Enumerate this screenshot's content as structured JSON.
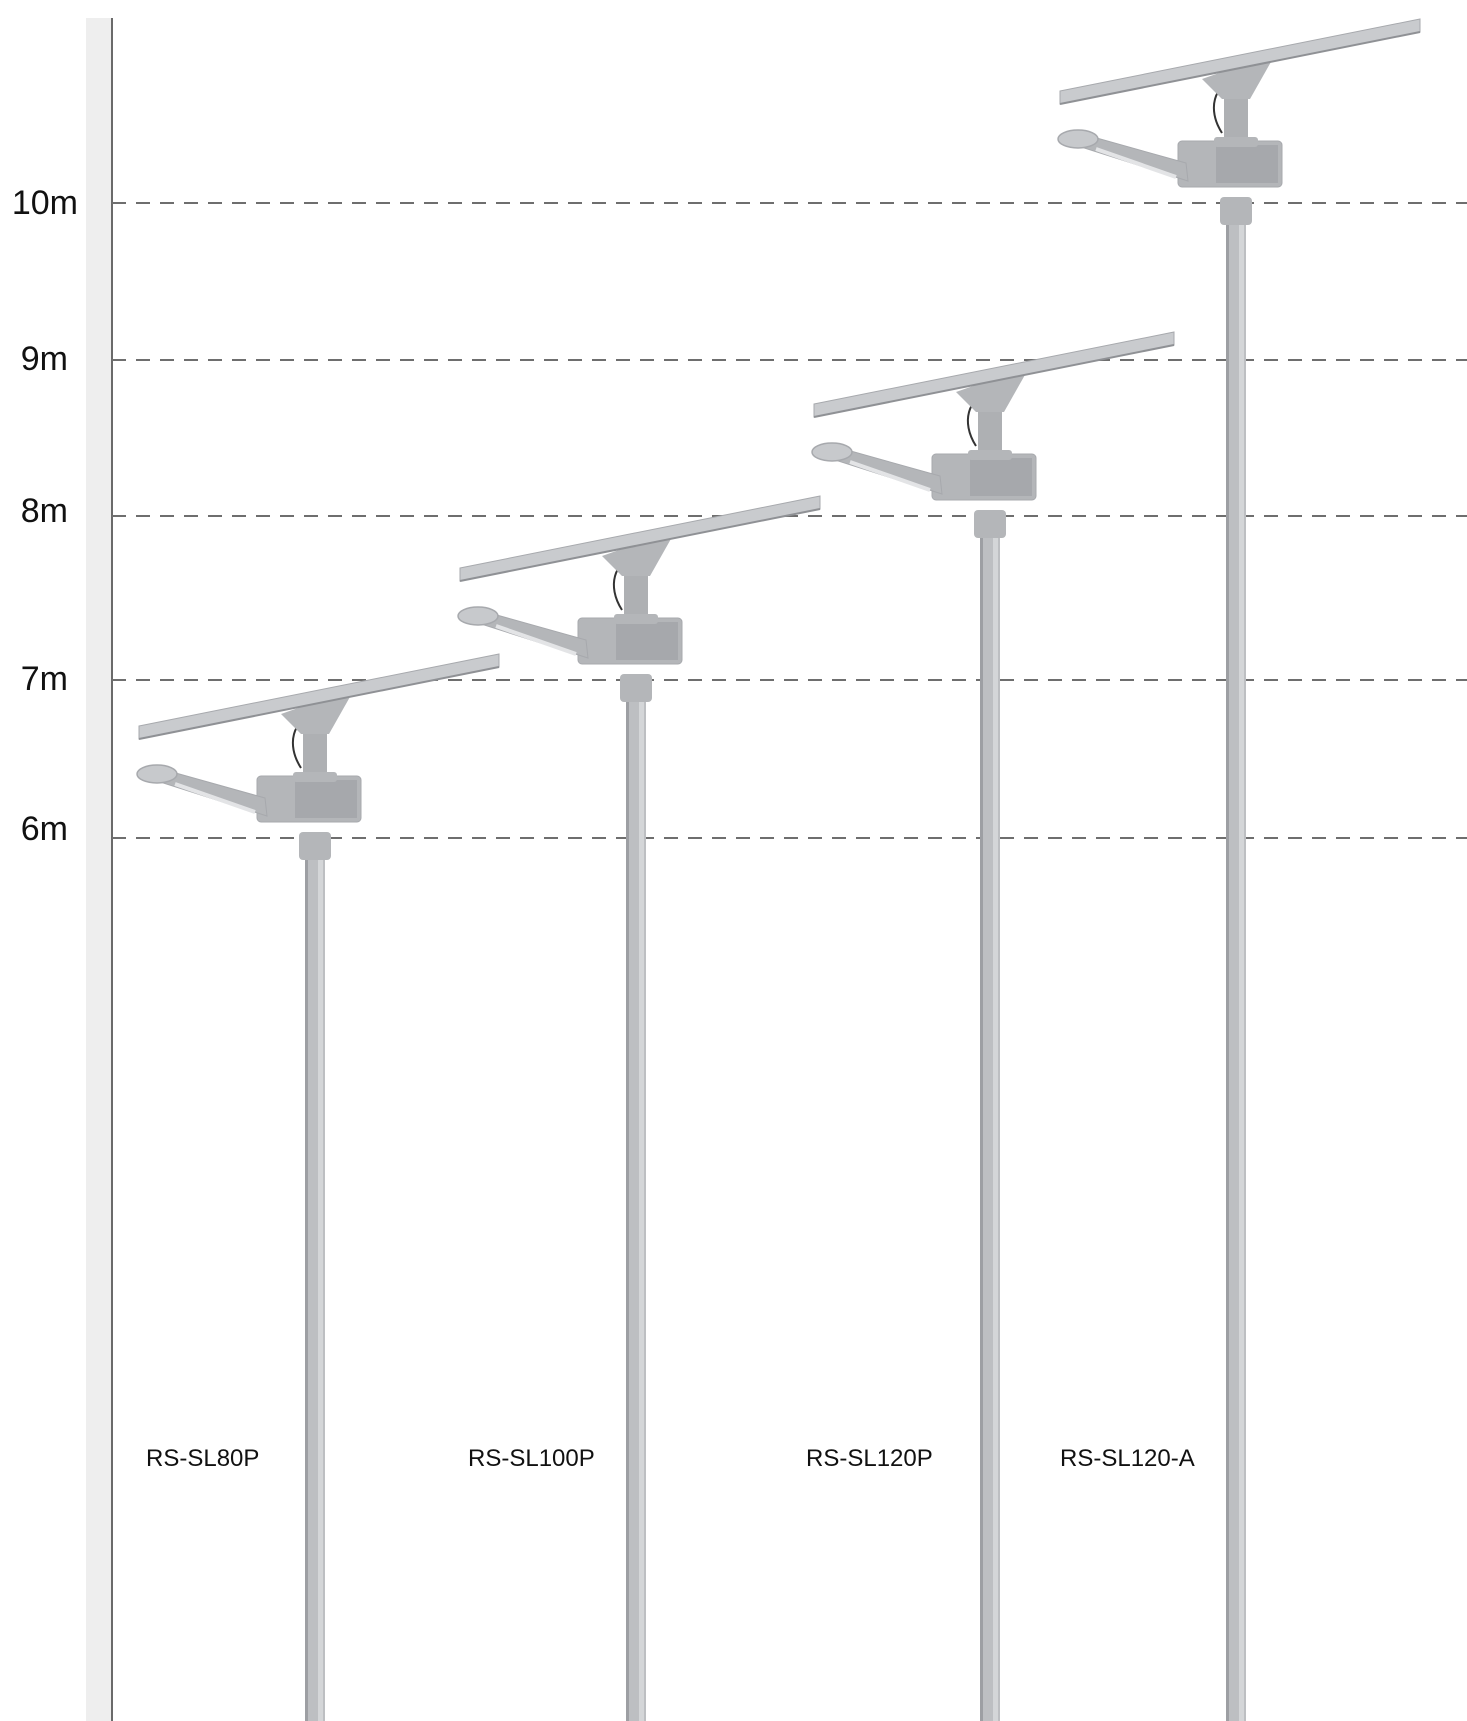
{
  "height_scale": {
    "unit": "m",
    "levels": [
      {
        "value": 10,
        "label": "10m"
      },
      {
        "value": 9,
        "label": "9m"
      },
      {
        "value": 8,
        "label": "8m"
      },
      {
        "value": 7,
        "label": "7m"
      },
      {
        "value": 6,
        "label": "6m"
      }
    ]
  },
  "lights": [
    {
      "model": "RS-SL80P",
      "pole_height_m": 6
    },
    {
      "model": "RS-SL100P",
      "pole_height_m": 7
    },
    {
      "model": "RS-SL120P",
      "pole_height_m": 8
    },
    {
      "model": "RS-SL120-A",
      "pole_height_m": 10
    }
  ],
  "colors": {
    "pole": "#bdbfc2",
    "pole_shade": "#9d9fa3",
    "panel": "#c9cbce",
    "panel_edge": "#a7a9ad",
    "housing": "#b4b6b9",
    "dash": "#6e6e6e",
    "axis": "#6a6a6a",
    "axis_band": "#eeeeee",
    "text": "#111111"
  }
}
